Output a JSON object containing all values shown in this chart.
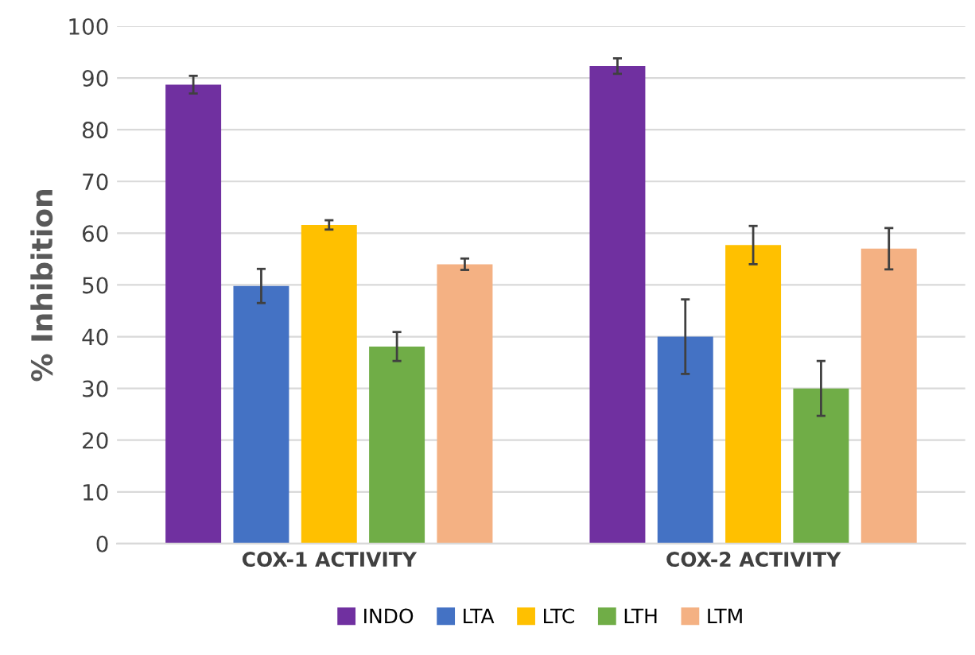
{
  "chart_data": {
    "type": "bar",
    "ylabel": "% Inhibition",
    "categories": [
      "COX-1 ACTIVITY",
      "COX-2 ACTIVITY"
    ],
    "series": [
      {
        "name": "INDO",
        "color": "#7030a0",
        "values": [
          88.7,
          92.3
        ],
        "errors": [
          1.7,
          1.5
        ]
      },
      {
        "name": "LTA",
        "color": "#4472c4",
        "values": [
          49.8,
          40
        ],
        "errors": [
          3.3,
          7.2
        ]
      },
      {
        "name": "LTC",
        "color": "#ffc000",
        "values": [
          61.6,
          57.7
        ],
        "errors": [
          0.9,
          3.7
        ]
      },
      {
        "name": "LTH",
        "color": "#70ad47",
        "values": [
          38.1,
          30
        ],
        "errors": [
          2.8,
          5.3
        ]
      },
      {
        "name": "LTM",
        "color": "#f4b183",
        "values": [
          54,
          57
        ],
        "errors": [
          1.1,
          4
        ]
      }
    ],
    "ylim": [
      0,
      100
    ],
    "yticks": [
      0,
      10,
      20,
      30,
      40,
      50,
      60,
      70,
      80,
      90,
      100
    ],
    "grid": "y",
    "legend": "bottom"
  }
}
